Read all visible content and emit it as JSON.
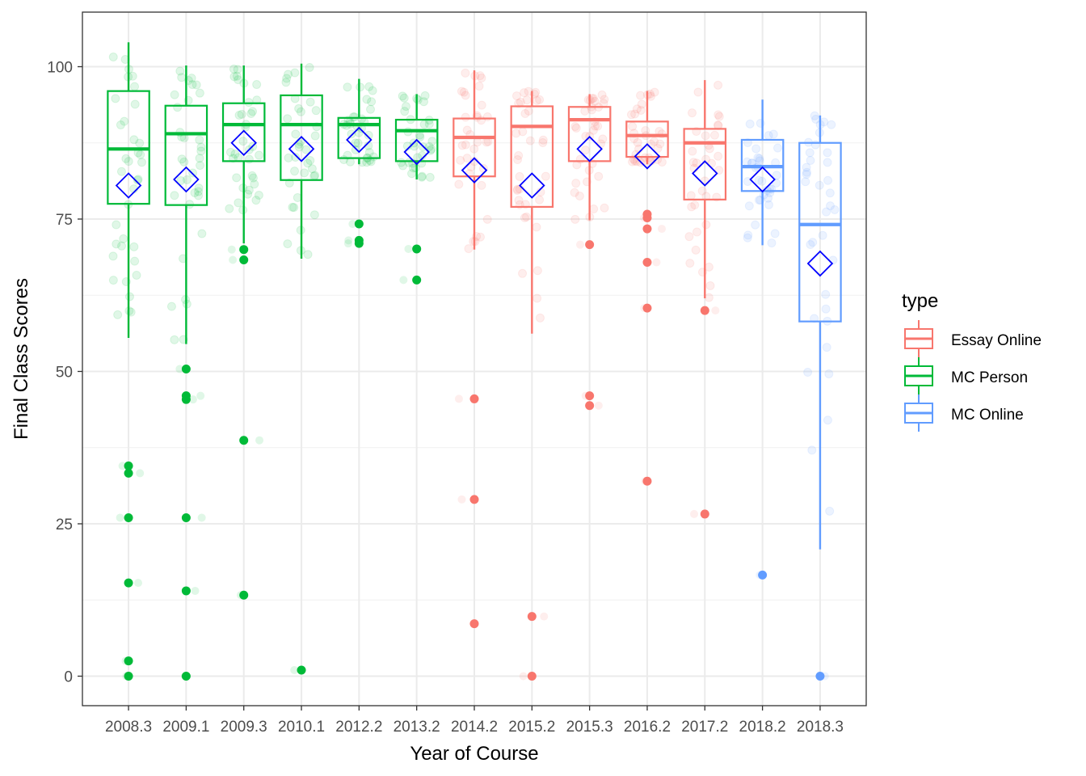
{
  "chart_data": {
    "type": "box",
    "xlabel": "Year of Course",
    "ylabel": "Final Class Scores",
    "ylim": [
      -5,
      108
    ],
    "yticks": [
      0,
      25,
      50,
      75,
      100
    ],
    "grid": true,
    "legend": {
      "title": "type",
      "placement": "right",
      "entries": [
        {
          "name": "Essay Online",
          "color": "#F8766D"
        },
        {
          "name": "MC Person",
          "color": "#00BA38"
        },
        {
          "name": "MC Online",
          "color": "#619CFF"
        }
      ]
    },
    "mean_marker_color": "#0000FF",
    "categories": [
      "2008.3",
      "2009.1",
      "2009.3",
      "2010.1",
      "2012.2",
      "2013.2",
      "2014.2",
      "2015.2",
      "2015.3",
      "2016.2",
      "2017.2",
      "2018.2",
      "2018.3"
    ],
    "boxes": [
      {
        "year": "2008.3",
        "type": "MC Person",
        "whisker_low": 55.5,
        "q1": 77.5,
        "median": 86.5,
        "q3": 96,
        "whisker_high": 104,
        "mean": 80.5,
        "outliers": [
          34.5,
          33.3,
          26,
          15.3,
          2.5,
          0
        ]
      },
      {
        "year": "2009.1",
        "type": "MC Person",
        "whisker_low": 54.5,
        "q1": 77.3,
        "median": 89,
        "q3": 93.6,
        "whisker_high": 100.2,
        "mean": 81.5,
        "outliers": [
          50.4,
          46,
          45.4,
          26,
          14,
          0
        ]
      },
      {
        "year": "2009.3",
        "type": "MC Person",
        "whisker_low": 71,
        "q1": 84.5,
        "median": 90.5,
        "q3": 94,
        "whisker_high": 100.2,
        "mean": 87.5,
        "outliers": [
          70,
          68.3,
          38.7,
          13.3
        ]
      },
      {
        "year": "2010.1",
        "type": "MC Person",
        "whisker_low": 68.5,
        "q1": 81.4,
        "median": 90.5,
        "q3": 95.3,
        "whisker_high": 100.5,
        "mean": 86.5,
        "outliers": [
          1
        ]
      },
      {
        "year": "2012.2",
        "type": "MC Person",
        "whisker_low": 84,
        "q1": 85,
        "median": 90.5,
        "q3": 91.6,
        "whisker_high": 98,
        "mean": 88,
        "outliers": [
          74.2,
          71.5,
          71
        ]
      },
      {
        "year": "2013.2",
        "type": "MC Person",
        "whisker_low": 81.5,
        "q1": 84.5,
        "median": 89.5,
        "q3": 91.3,
        "whisker_high": 95.5,
        "mean": 86,
        "outliers": [
          70.1,
          65
        ]
      },
      {
        "year": "2014.2",
        "type": "Essay Online",
        "whisker_low": 70,
        "q1": 82,
        "median": 88.4,
        "q3": 91.5,
        "whisker_high": 99.4,
        "mean": 83,
        "outliers": [
          45.5,
          29,
          8.6
        ]
      },
      {
        "year": "2015.2",
        "type": "Essay Online",
        "whisker_low": 56.2,
        "q1": 77,
        "median": 90.2,
        "q3": 93.5,
        "whisker_high": 96,
        "mean": 80.5,
        "outliers": [
          9.8,
          0
        ]
      },
      {
        "year": "2015.3",
        "type": "Essay Online",
        "whisker_low": 74.8,
        "q1": 84.5,
        "median": 91.3,
        "q3": 93.4,
        "whisker_high": 95.5,
        "mean": 86.5,
        "outliers": [
          70.8,
          46,
          44.4
        ]
      },
      {
        "year": "2016.2",
        "type": "Essay Online",
        "whisker_low": 84,
        "q1": 85.2,
        "median": 88.7,
        "q3": 91,
        "whisker_high": 96,
        "mean": 85.3,
        "outliers": [
          75.8,
          75.2,
          73.4,
          67.9,
          60.4,
          32
        ]
      },
      {
        "year": "2017.2",
        "type": "Essay Online",
        "whisker_low": 62,
        "q1": 78.2,
        "median": 87.5,
        "q3": 89.8,
        "whisker_high": 97.8,
        "mean": 82.5,
        "outliers": [
          60,
          26.6
        ]
      },
      {
        "year": "2018.2",
        "type": "MC Online",
        "whisker_low": 70.7,
        "q1": 79.6,
        "median": 83.6,
        "q3": 88,
        "whisker_high": 94.6,
        "mean": 81.5,
        "outliers": [
          16.6
        ]
      },
      {
        "year": "2018.3",
        "type": "MC Online",
        "whisker_low": 20.8,
        "q1": 58.2,
        "median": 74.1,
        "q3": 87.5,
        "whisker_high": 92,
        "mean": 67.7,
        "outliers": [
          0
        ]
      }
    ]
  }
}
